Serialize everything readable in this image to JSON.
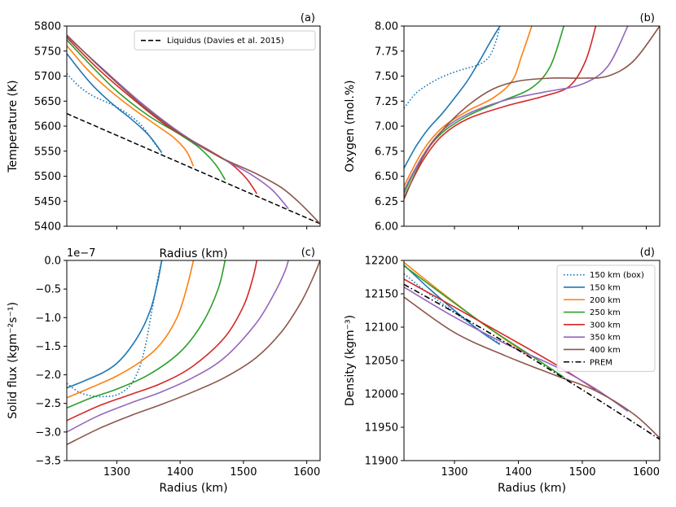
{
  "chart_data": [
    {
      "panel": "(a)",
      "type": "line",
      "xlabel": "Radius (km)",
      "ylabel": "Temperature (K)",
      "xlim": [
        1221,
        1621
      ],
      "ylim": [
        5400,
        5800
      ],
      "xticks": [
        1300,
        1400,
        1500,
        1600
      ],
      "yticks": [
        5400,
        5450,
        5500,
        5550,
        5600,
        5650,
        5700,
        5750,
        5800
      ],
      "xticklabels": false,
      "legend": {
        "position": "top-right",
        "entries": [
          "Liquidus (Davies et al. 2015)"
        ]
      },
      "series": [
        {
          "name": "Liquidus (Davies et al. 2015)",
          "color": "#000000",
          "style": "dashed",
          "x": [
            1221,
            1621
          ],
          "y": [
            5625,
            5405
          ]
        },
        {
          "name": "150 km (box)",
          "color": "#1f77b4",
          "style": "dotted",
          "x": [
            1221,
            1240,
            1260,
            1280,
            1300,
            1320,
            1340,
            1360,
            1371
          ],
          "y": [
            5705,
            5680,
            5662,
            5650,
            5638,
            5622,
            5600,
            5565,
            5547
          ]
        },
        {
          "name": "150 km",
          "color": "#1f77b4",
          "style": "solid",
          "x": [
            1221,
            1240,
            1260,
            1280,
            1300,
            1320,
            1340,
            1355,
            1371
          ],
          "y": [
            5745,
            5714,
            5684,
            5659,
            5637,
            5617,
            5595,
            5575,
            5547
          ]
        },
        {
          "name": "200 km",
          "color": "#ff7f0e",
          "style": "solid",
          "x": [
            1221,
            1250,
            1280,
            1320,
            1360,
            1390,
            1410,
            1421
          ],
          "y": [
            5761,
            5718,
            5681,
            5640,
            5604,
            5577,
            5550,
            5520
          ]
        },
        {
          "name": "250 km",
          "color": "#2ca02c",
          "style": "solid",
          "x": [
            1221,
            1260,
            1300,
            1350,
            1400,
            1430,
            1455,
            1471
          ],
          "y": [
            5772,
            5720,
            5670,
            5621,
            5583,
            5557,
            5525,
            5493
          ]
        },
        {
          "name": "300 km",
          "color": "#d62728",
          "style": "solid",
          "x": [
            1221,
            1270,
            1320,
            1380,
            1440,
            1480,
            1505,
            1521
          ],
          "y": [
            5777,
            5715,
            5660,
            5600,
            5556,
            5525,
            5495,
            5465
          ]
        },
        {
          "name": "350 km",
          "color": "#9467bd",
          "style": "solid",
          "x": [
            1221,
            1280,
            1340,
            1400,
            1460,
            1510,
            1545,
            1571
          ],
          "y": [
            5780,
            5712,
            5645,
            5587,
            5540,
            5505,
            5473,
            5435
          ]
        },
        {
          "name": "400 km",
          "color": "#8c564b",
          "style": "solid",
          "x": [
            1221,
            1280,
            1340,
            1400,
            1460,
            1520,
            1560,
            1590,
            1621
          ],
          "y": [
            5782,
            5710,
            5642,
            5585,
            5540,
            5505,
            5477,
            5445,
            5405
          ]
        }
      ]
    },
    {
      "panel": "(b)",
      "type": "line",
      "xlabel": "",
      "ylabel": "Oxygen (mol.%)",
      "xlim": [
        1221,
        1621
      ],
      "ylim": [
        6.0,
        8.0
      ],
      "xticks": [
        1300,
        1400,
        1500,
        1600
      ],
      "yticks": [
        6.0,
        6.25,
        6.5,
        6.75,
        7.0,
        7.25,
        7.5,
        7.75,
        8.0
      ],
      "ytickformat": 2,
      "xticklabels": false,
      "series": [
        {
          "name": "150 km (box)",
          "color": "#1f77b4",
          "style": "dotted",
          "x": [
            1221,
            1240,
            1260,
            1280,
            1300,
            1320,
            1340,
            1355,
            1365,
            1371
          ],
          "y": [
            7.18,
            7.33,
            7.42,
            7.49,
            7.54,
            7.58,
            7.62,
            7.7,
            7.85,
            8.0
          ]
        },
        {
          "name": "150 km",
          "color": "#1f77b4",
          "style": "solid",
          "x": [
            1221,
            1240,
            1260,
            1280,
            1300,
            1320,
            1340,
            1355,
            1371
          ],
          "y": [
            6.58,
            6.8,
            6.98,
            7.12,
            7.28,
            7.45,
            7.66,
            7.83,
            8.0
          ]
        },
        {
          "name": "200 km",
          "color": "#ff7f0e",
          "style": "solid",
          "x": [
            1221,
            1250,
            1280,
            1320,
            1360,
            1390,
            1405,
            1421
          ],
          "y": [
            6.4,
            6.75,
            6.98,
            7.15,
            7.28,
            7.45,
            7.7,
            8.0
          ]
        },
        {
          "name": "250 km",
          "color": "#2ca02c",
          "style": "solid",
          "x": [
            1221,
            1250,
            1280,
            1320,
            1370,
            1420,
            1450,
            1471
          ],
          "y": [
            6.33,
            6.7,
            6.93,
            7.1,
            7.24,
            7.38,
            7.6,
            8.0
          ]
        },
        {
          "name": "300 km",
          "color": "#d62728",
          "style": "solid",
          "x": [
            1221,
            1250,
            1280,
            1320,
            1380,
            1440,
            1480,
            1505,
            1521
          ],
          "y": [
            6.29,
            6.65,
            6.9,
            7.07,
            7.2,
            7.3,
            7.4,
            7.65,
            8.0
          ]
        },
        {
          "name": "350 km",
          "color": "#9467bd",
          "style": "solid",
          "x": [
            1221,
            1250,
            1280,
            1320,
            1380,
            1440,
            1500,
            1540,
            1571
          ],
          "y": [
            6.36,
            6.7,
            6.95,
            7.12,
            7.26,
            7.34,
            7.42,
            7.6,
            8.0
          ]
        },
        {
          "name": "400 km",
          "color": "#8c564b",
          "style": "solid",
          "x": [
            1221,
            1250,
            1280,
            1320,
            1360,
            1400,
            1450,
            1500,
            1540,
            1580,
            1621
          ],
          "y": [
            6.27,
            6.68,
            6.95,
            7.2,
            7.37,
            7.45,
            7.48,
            7.48,
            7.5,
            7.65,
            8.0
          ]
        }
      ]
    },
    {
      "panel": "(c)",
      "type": "line",
      "xlabel": "Radius (km)",
      "ylabel": "Solid flux (kgm⁻²s⁻¹)",
      "offset_label": "1e−7",
      "xlim": [
        1221,
        1621
      ],
      "ylim": [
        -3.5,
        0.0
      ],
      "xticks": [
        1300,
        1400,
        1500,
        1600
      ],
      "yticks": [
        -3.5,
        -3.0,
        -2.5,
        -2.0,
        -1.5,
        -1.0,
        -0.5,
        0.0
      ],
      "ytickformat": 1,
      "xticklabels": true,
      "series": [
        {
          "name": "150 km (box)",
          "color": "#1f77b4",
          "style": "dotted",
          "x": [
            1221,
            1240,
            1260,
            1280,
            1300,
            1320,
            1335,
            1345,
            1355,
            1365,
            1371
          ],
          "y": [
            -2.15,
            -2.3,
            -2.37,
            -2.38,
            -2.35,
            -2.2,
            -1.9,
            -1.5,
            -0.9,
            -0.3,
            0.0
          ]
        },
        {
          "name": "150 km",
          "color": "#1f77b4",
          "style": "solid",
          "x": [
            1221,
            1250,
            1280,
            1300,
            1320,
            1340,
            1355,
            1365,
            1371
          ],
          "y": [
            -2.23,
            -2.1,
            -1.95,
            -1.8,
            -1.55,
            -1.2,
            -0.8,
            -0.35,
            0.0
          ]
        },
        {
          "name": "200 km",
          "color": "#ff7f0e",
          "style": "solid",
          "x": [
            1221,
            1260,
            1300,
            1340,
            1370,
            1395,
            1410,
            1421
          ],
          "y": [
            -2.4,
            -2.22,
            -2.02,
            -1.75,
            -1.45,
            -1.0,
            -0.5,
            0.0
          ]
        },
        {
          "name": "250 km",
          "color": "#2ca02c",
          "style": "solid",
          "x": [
            1221,
            1260,
            1300,
            1350,
            1400,
            1435,
            1460,
            1471
          ],
          "y": [
            -2.58,
            -2.4,
            -2.25,
            -2.0,
            -1.6,
            -1.1,
            -0.5,
            0.0
          ]
        },
        {
          "name": "300 km",
          "color": "#d62728",
          "style": "solid",
          "x": [
            1221,
            1270,
            1320,
            1370,
            1420,
            1470,
            1500,
            1515,
            1521
          ],
          "y": [
            -2.8,
            -2.55,
            -2.35,
            -2.15,
            -1.85,
            -1.35,
            -0.8,
            -0.3,
            0.0
          ]
        },
        {
          "name": "350 km",
          "color": "#9467bd",
          "style": "solid",
          "x": [
            1221,
            1270,
            1320,
            1370,
            1420,
            1470,
            1520,
            1550,
            1565,
            1571
          ],
          "y": [
            -3.0,
            -2.72,
            -2.5,
            -2.3,
            -2.05,
            -1.7,
            -1.1,
            -0.55,
            -0.2,
            0.0
          ]
        },
        {
          "name": "400 km",
          "color": "#8c564b",
          "style": "solid",
          "x": [
            1221,
            1270,
            1320,
            1370,
            1420,
            1470,
            1520,
            1560,
            1590,
            1610,
            1621
          ],
          "y": [
            -3.22,
            -2.95,
            -2.72,
            -2.52,
            -2.3,
            -2.05,
            -1.7,
            -1.25,
            -0.75,
            -0.3,
            0.0
          ]
        }
      ]
    },
    {
      "panel": "(d)",
      "type": "line",
      "xlabel": "Radius (km)",
      "ylabel": "Density (kgm⁻³)",
      "xlim": [
        1221,
        1621
      ],
      "ylim": [
        11900,
        12200
      ],
      "xticks": [
        1300,
        1400,
        1500,
        1600
      ],
      "yticks": [
        11900,
        11950,
        12000,
        12050,
        12100,
        12150,
        12200
      ],
      "xticklabels": true,
      "legend": {
        "position": "top-right",
        "entries": [
          "150 km (box)",
          "150 km",
          "200 km",
          "250 km",
          "300 km",
          "350 km",
          "400 km",
          "PREM"
        ]
      },
      "series": [
        {
          "name": "150 km (box)",
          "color": "#1f77b4",
          "style": "dotted",
          "x": [
            1221,
            1260,
            1300,
            1340,
            1371
          ],
          "y": [
            12180,
            12150,
            12122,
            12095,
            12075
          ]
        },
        {
          "name": "150 km",
          "color": "#1f77b4",
          "style": "solid",
          "x": [
            1221,
            1260,
            1300,
            1340,
            1371
          ],
          "y": [
            12193,
            12158,
            12125,
            12094,
            12074
          ]
        },
        {
          "name": "200 km",
          "color": "#ff7f0e",
          "style": "solid",
          "x": [
            1221,
            1280,
            1340,
            1400,
            1421
          ],
          "y": [
            12197,
            12152,
            12108,
            12068,
            12053
          ]
        },
        {
          "name": "250 km",
          "color": "#2ca02c",
          "style": "solid",
          "x": [
            1221,
            1290,
            1360,
            1430,
            1471
          ],
          "y": [
            12192,
            12143,
            12095,
            12051,
            12025
          ]
        },
        {
          "name": "300 km",
          "color": "#d62728",
          "style": "solid",
          "x": [
            1221,
            1300,
            1380,
            1460,
            1521
          ],
          "y": [
            12172,
            12130,
            12087,
            12043,
            12006
          ]
        },
        {
          "name": "350 km",
          "color": "#9467bd",
          "style": "solid",
          "x": [
            1221,
            1300,
            1380,
            1460,
            1520,
            1571
          ],
          "y": [
            12160,
            12115,
            12075,
            12040,
            12008,
            11974
          ]
        },
        {
          "name": "400 km",
          "color": "#8c564b",
          "style": "solid",
          "x": [
            1221,
            1300,
            1380,
            1460,
            1520,
            1580,
            1621
          ],
          "y": [
            12145,
            12092,
            12057,
            12027,
            12005,
            11970,
            11934
          ]
        },
        {
          "name": "PREM",
          "color": "#000000",
          "style": "dashdot",
          "x": [
            1221,
            1300,
            1380,
            1460,
            1540,
            1621
          ],
          "y": [
            12164,
            12122,
            12077,
            12030,
            11982,
            11932
          ]
        }
      ]
    }
  ]
}
